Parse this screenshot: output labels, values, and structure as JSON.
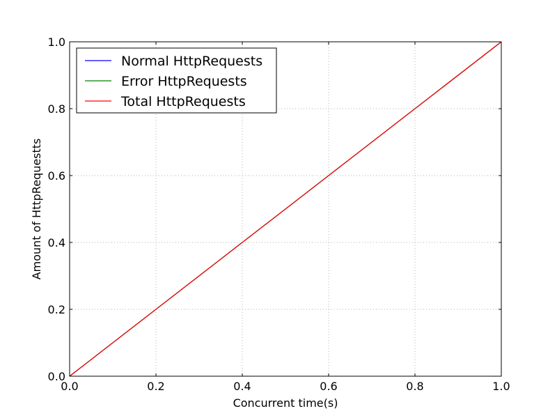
{
  "chart_data": {
    "type": "line",
    "title": "",
    "xlabel": "Concurrent time(s)",
    "ylabel": "Amount of HttpRequestts",
    "xlim": [
      0.0,
      1.0
    ],
    "ylim": [
      0.0,
      1.0
    ],
    "grid": true,
    "legend_position": "top-left",
    "x_ticks": [
      "0.0",
      "0.2",
      "0.4",
      "0.6",
      "0.8",
      "1.0"
    ],
    "y_ticks": [
      "0.0",
      "0.2",
      "0.4",
      "0.6",
      "0.8",
      "1.0"
    ],
    "series": [
      {
        "name": "Normal HttpRequests",
        "color": "#0000ff",
        "x": [
          0.0,
          1.0
        ],
        "y": [
          0.0,
          1.0
        ]
      },
      {
        "name": "Error HttpRequests",
        "color": "#008000",
        "x": [
          0.0,
          1.0
        ],
        "y": [
          0.0,
          1.0
        ]
      },
      {
        "name": "Total HttpRequests",
        "color": "#ff0000",
        "x": [
          0.0,
          1.0
        ],
        "y": [
          0.0,
          1.0
        ]
      }
    ]
  }
}
